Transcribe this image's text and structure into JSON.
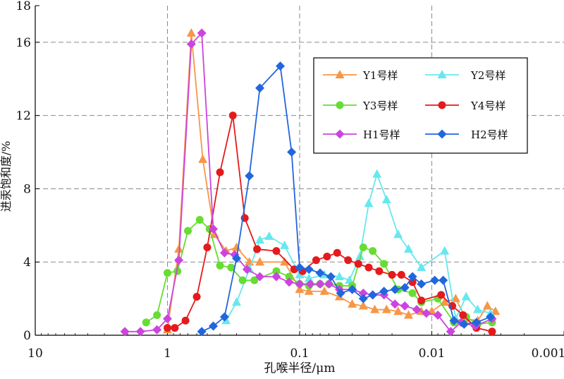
{
  "chart_data": {
    "type": "line",
    "title": "",
    "xlabel": "孔喉半径/μm",
    "ylabel": "进汞饱和度/%",
    "x_scale": "log",
    "x_reversed": true,
    "xlim": [
      10,
      0.001
    ],
    "ylim": [
      0,
      18
    ],
    "x_ticks": [
      {
        "value": 10,
        "label": "10"
      },
      {
        "value": 1,
        "label": "1"
      },
      {
        "value": 0.1,
        "label": "0.1"
      },
      {
        "value": 0.01,
        "label": "0.01"
      },
      {
        "value": 0.001,
        "label": "0.001"
      }
    ],
    "y_ticks": [
      {
        "value": 0,
        "label": "0"
      },
      {
        "value": 4,
        "label": "4"
      },
      {
        "value": 8,
        "label": "8"
      },
      {
        "value": 12,
        "label": "12"
      },
      {
        "value": 16,
        "label": "16"
      },
      {
        "value": 18,
        "label": "18"
      }
    ],
    "grid": true,
    "legend_position": "upper-right",
    "series": [
      {
        "name": "Y1号样",
        "color": "#f79646",
        "marker": "triangle",
        "points": [
          [
            1.0,
            0.3
          ],
          [
            0.82,
            4.7
          ],
          [
            0.66,
            16.5
          ],
          [
            0.54,
            9.6
          ],
          [
            0.44,
            5.5
          ],
          [
            0.36,
            4.6
          ],
          [
            0.3,
            4.8
          ],
          [
            0.24,
            4.0
          ],
          [
            0.2,
            4.0
          ],
          [
            0.13,
            4.0
          ],
          [
            0.1,
            2.5
          ],
          [
            0.085,
            2.4
          ],
          [
            0.065,
            2.4
          ],
          [
            0.05,
            2.1
          ],
          [
            0.04,
            1.7
          ],
          [
            0.033,
            1.6
          ],
          [
            0.027,
            1.4
          ],
          [
            0.022,
            1.4
          ],
          [
            0.018,
            1.3
          ],
          [
            0.015,
            1.1
          ],
          [
            0.012,
            1.3
          ],
          [
            0.01,
            1.3
          ],
          [
            0.008,
            1.8
          ],
          [
            0.0066,
            2.0
          ],
          [
            0.0055,
            0.9
          ],
          [
            0.0045,
            0.8
          ],
          [
            0.0038,
            1.6
          ],
          [
            0.0033,
            1.3
          ]
        ]
      },
      {
        "name": "Y2号样",
        "color": "#66e8ee",
        "marker": "triangle",
        "points": [
          [
            0.36,
            0.8
          ],
          [
            0.3,
            1.8
          ],
          [
            0.24,
            3.6
          ],
          [
            0.2,
            5.2
          ],
          [
            0.17,
            5.4
          ],
          [
            0.13,
            4.9
          ],
          [
            0.1,
            3.3
          ],
          [
            0.085,
            3.1
          ],
          [
            0.065,
            3.3
          ],
          [
            0.05,
            3.2
          ],
          [
            0.042,
            3.0
          ],
          [
            0.035,
            4.3
          ],
          [
            0.03,
            7.2
          ],
          [
            0.026,
            8.8
          ],
          [
            0.022,
            7.4
          ],
          [
            0.018,
            5.5
          ],
          [
            0.015,
            4.7
          ],
          [
            0.012,
            3.7
          ],
          [
            0.008,
            4.6
          ],
          [
            0.0066,
            0.9
          ],
          [
            0.0055,
            2.1
          ],
          [
            0.0045,
            1.4
          ],
          [
            0.0036,
            1.2
          ]
        ]
      },
      {
        "name": "Y3号样",
        "color": "#66dd33",
        "marker": "circle",
        "points": [
          [
            1.45,
            0.7
          ],
          [
            1.2,
            1.1
          ],
          [
            1.0,
            3.4
          ],
          [
            0.84,
            3.5
          ],
          [
            0.7,
            5.7
          ],
          [
            0.57,
            6.3
          ],
          [
            0.48,
            5.8
          ],
          [
            0.4,
            3.8
          ],
          [
            0.33,
            3.7
          ],
          [
            0.27,
            3.0
          ],
          [
            0.22,
            3.0
          ],
          [
            0.15,
            3.5
          ],
          [
            0.12,
            3.2
          ],
          [
            0.1,
            2.8
          ],
          [
            0.085,
            2.7
          ],
          [
            0.07,
            2.8
          ],
          [
            0.06,
            2.8
          ],
          [
            0.05,
            2.7
          ],
          [
            0.04,
            2.7
          ],
          [
            0.033,
            4.8
          ],
          [
            0.028,
            4.6
          ],
          [
            0.023,
            3.9
          ],
          [
            0.018,
            2.5
          ],
          [
            0.014,
            2.3
          ],
          [
            0.012,
            1.8
          ],
          [
            0.009,
            2.0
          ],
          [
            0.0068,
            0.7
          ],
          [
            0.0055,
            1.0
          ],
          [
            0.0045,
            0.6
          ],
          [
            0.0035,
            0.7
          ]
        ]
      },
      {
        "name": "Y4号样",
        "color": "#e41a1c",
        "marker": "circle",
        "points": [
          [
            1.0,
            0.4
          ],
          [
            0.88,
            0.4
          ],
          [
            0.73,
            0.8
          ],
          [
            0.6,
            2.1
          ],
          [
            0.5,
            4.8
          ],
          [
            0.4,
            8.9
          ],
          [
            0.32,
            12.0
          ],
          [
            0.26,
            6.4
          ],
          [
            0.21,
            4.7
          ],
          [
            0.15,
            4.6
          ],
          [
            0.11,
            3.6
          ],
          [
            0.095,
            3.5
          ],
          [
            0.075,
            4.1
          ],
          [
            0.062,
            4.3
          ],
          [
            0.052,
            4.5
          ],
          [
            0.043,
            4.1
          ],
          [
            0.036,
            3.9
          ],
          [
            0.03,
            3.7
          ],
          [
            0.025,
            3.5
          ],
          [
            0.02,
            3.3
          ],
          [
            0.017,
            3.3
          ],
          [
            0.014,
            2.9
          ],
          [
            0.012,
            1.9
          ],
          [
            0.0085,
            2.2
          ],
          [
            0.007,
            1.6
          ],
          [
            0.0058,
            1.1
          ],
          [
            0.0046,
            0.4
          ],
          [
            0.0035,
            0.2
          ]
        ]
      },
      {
        "name": "H1号样",
        "color": "#cc44dd",
        "marker": "diamond",
        "points": [
          [
            2.1,
            0.2
          ],
          [
            1.6,
            0.2
          ],
          [
            1.2,
            0.3
          ],
          [
            1.0,
            0.9
          ],
          [
            0.82,
            4.1
          ],
          [
            0.66,
            15.9
          ],
          [
            0.55,
            16.5
          ],
          [
            0.45,
            5.8
          ],
          [
            0.37,
            4.5
          ],
          [
            0.31,
            4.4
          ],
          [
            0.25,
            3.6
          ],
          [
            0.2,
            3.2
          ],
          [
            0.15,
            3.2
          ],
          [
            0.12,
            2.9
          ],
          [
            0.1,
            2.8
          ],
          [
            0.083,
            2.8
          ],
          [
            0.07,
            2.8
          ],
          [
            0.06,
            2.8
          ],
          [
            0.05,
            2.5
          ],
          [
            0.04,
            2.5
          ],
          [
            0.033,
            2.3
          ],
          [
            0.028,
            2.2
          ],
          [
            0.023,
            2.2
          ],
          [
            0.019,
            1.7
          ],
          [
            0.016,
            1.6
          ],
          [
            0.013,
            1.4
          ],
          [
            0.011,
            1.2
          ],
          [
            0.009,
            1.1
          ],
          [
            0.0072,
            0.2
          ],
          [
            0.006,
            0.7
          ],
          [
            0.0047,
            0.5
          ],
          [
            0.0035,
            0.9
          ]
        ]
      },
      {
        "name": "H2号样",
        "color": "#2266dd",
        "marker": "diamond",
        "points": [
          [
            0.55,
            0.2
          ],
          [
            0.45,
            0.5
          ],
          [
            0.37,
            1.0
          ],
          [
            0.3,
            4.2
          ],
          [
            0.24,
            8.7
          ],
          [
            0.2,
            13.5
          ],
          [
            0.14,
            14.7
          ],
          [
            0.115,
            10.0
          ],
          [
            0.1,
            3.7
          ],
          [
            0.085,
            3.6
          ],
          [
            0.07,
            3.4
          ],
          [
            0.058,
            3.2
          ],
          [
            0.049,
            2.3
          ],
          [
            0.04,
            2.5
          ],
          [
            0.033,
            2.0
          ],
          [
            0.028,
            2.2
          ],
          [
            0.023,
            2.4
          ],
          [
            0.019,
            2.5
          ],
          [
            0.016,
            2.6
          ],
          [
            0.014,
            3.2
          ],
          [
            0.012,
            2.8
          ],
          [
            0.0095,
            3.0
          ],
          [
            0.0082,
            3.0
          ],
          [
            0.0068,
            0.8
          ],
          [
            0.0057,
            0.6
          ],
          [
            0.0046,
            0.7
          ],
          [
            0.0036,
            1.0
          ]
        ]
      }
    ]
  }
}
